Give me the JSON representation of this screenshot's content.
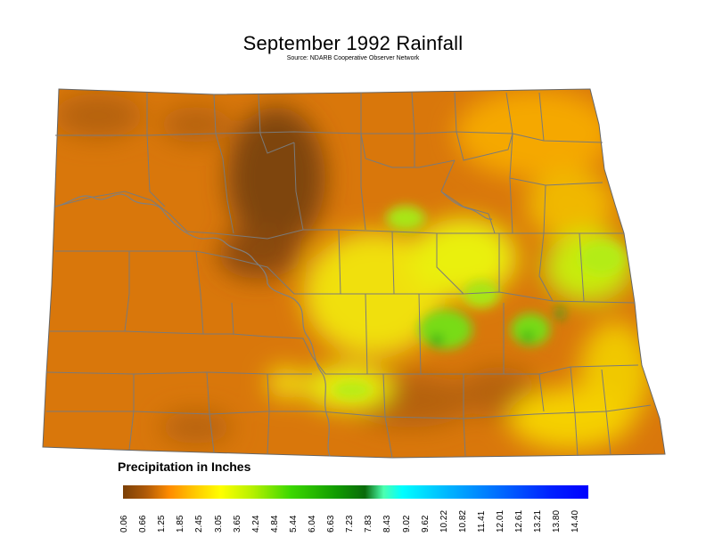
{
  "title": "September 1992 Rainfall",
  "subtitle": "Source: NDARB Cooperative Observer Network",
  "legend": {
    "title": "Precipitation in Inches",
    "ticks": [
      "0.06",
      "0.66",
      "1.25",
      "1.85",
      "2.45",
      "3.05",
      "3.65",
      "4.24",
      "4.84",
      "5.44",
      "6.04",
      "6.63",
      "7.23",
      "7.83",
      "8.43",
      "9.02",
      "9.62",
      "10.22",
      "10.82",
      "11.41",
      "12.01",
      "12.61",
      "13.21",
      "13.80",
      "14.40"
    ],
    "colors": [
      "#7a3f06",
      "#c86a06",
      "#ff9a00",
      "#ffd400",
      "#ffff00",
      "#c8f000",
      "#7ee800",
      "#2ed600",
      "#14a800",
      "#0a7a10",
      "#00ffff",
      "#00b4ff",
      "#0066ff",
      "#0000ff"
    ]
  },
  "colors": {
    "orange": "#d9770b",
    "dark_brown": "#8a4a0a",
    "yellow": "#f6ee16",
    "green": "#33d21e",
    "county_line": "#7a7a7a"
  }
}
